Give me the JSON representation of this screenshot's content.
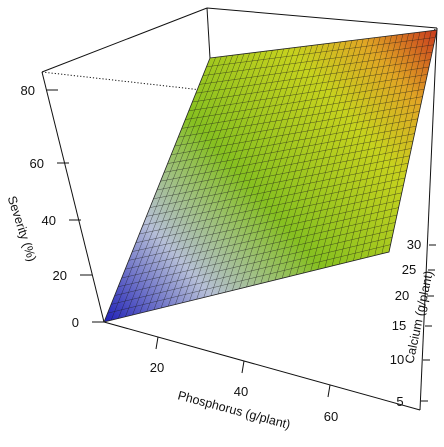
{
  "chart_data": {
    "type": "surface3d",
    "x_label": "Phosphorus (g/plant)",
    "y_label": "Calcium (g/plant)",
    "z_label": "Severity (%)",
    "x_ticks": [
      "20",
      "40",
      "60"
    ],
    "y_ticks": [
      "5",
      "10",
      "15",
      "20",
      "25",
      "30"
    ],
    "z_ticks": [
      "0",
      "20",
      "40",
      "60",
      "80"
    ],
    "x_range": [
      5,
      65
    ],
    "y_range": [
      3,
      35
    ],
    "z_range": [
      0,
      85
    ],
    "surface": {
      "corner_points": [
        {
          "phosphorus": 5,
          "calcium": 3,
          "severity": 0
        },
        {
          "phosphorus": 65,
          "calcium": 3,
          "severity": 42
        },
        {
          "phosphorus": 5,
          "calcium": 35,
          "severity": 44
        },
        {
          "phosphorus": 65,
          "calcium": 35,
          "severity": 85
        }
      ],
      "color_scale": [
        "#1f1fb8",
        "#b9c2dc",
        "#86c020",
        "#c6d21e",
        "#e0a624",
        "#c83a1e"
      ]
    }
  }
}
